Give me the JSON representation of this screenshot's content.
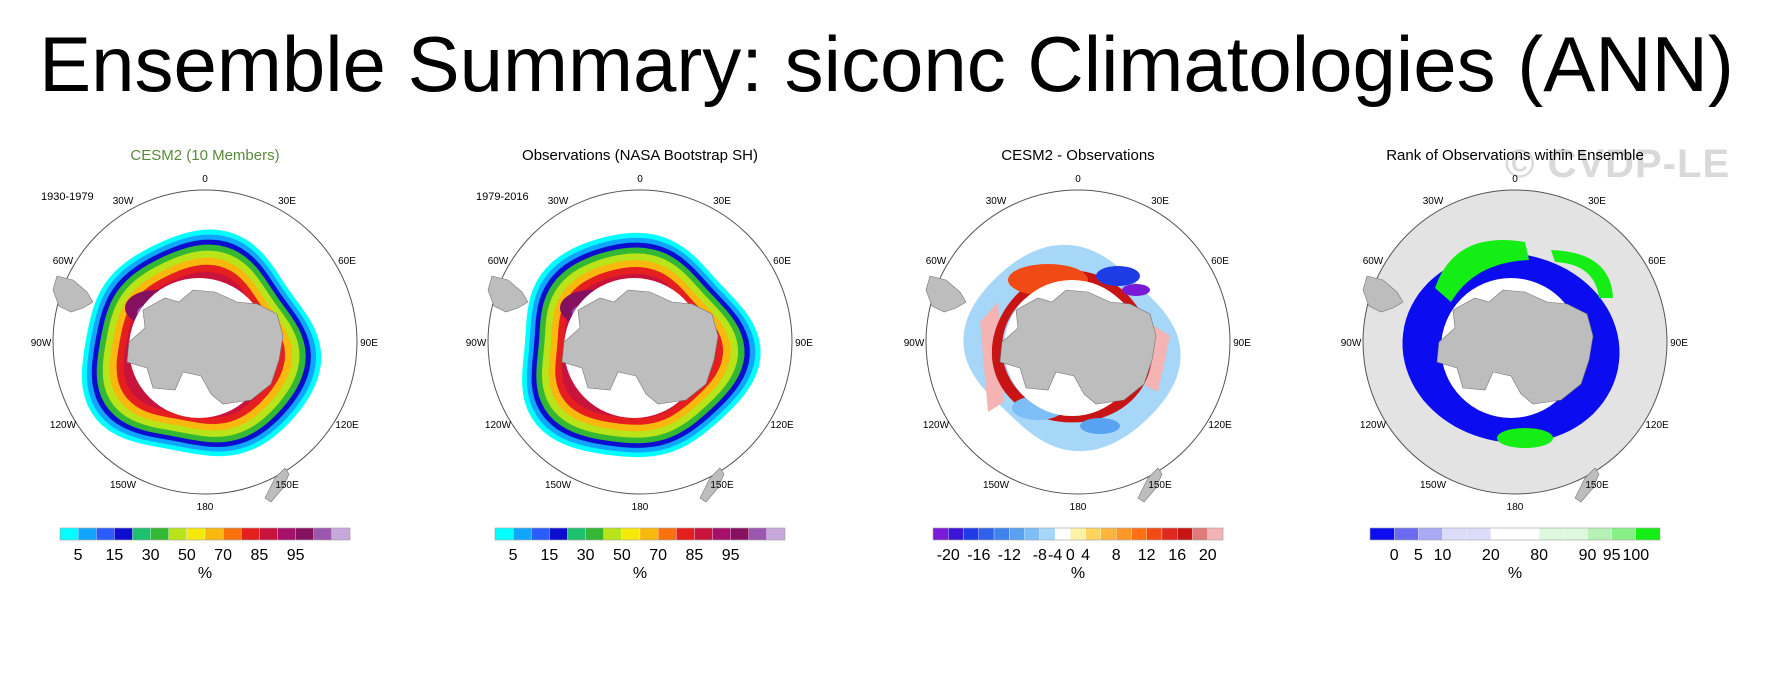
{
  "title": "Ensemble Summary: siconc Climatologies (ANN)",
  "watermark": "© CVDP-LE",
  "colors": {
    "land": "#bdbdbd",
    "rank_background": "#e3e3e3",
    "title_green": "#5a8a3c"
  },
  "panels": [
    {
      "id": "cesm2",
      "title": "CESM2 (10 Members)",
      "title_color": "#5a8a3c",
      "period": "1930-1979",
      "field": "ensemble-mean sea ice concentration",
      "colorbar": {
        "colors": [
          "#00ffff",
          "#10a6ff",
          "#2a5cff",
          "#0d0dcf",
          "#1dc06c",
          "#32b832",
          "#b9e41a",
          "#f6e90a",
          "#f9b80d",
          "#f9720d",
          "#e51f1f",
          "#c8143c",
          "#a6106a",
          "#85105f",
          "#9b56b0",
          "#c6a8da"
        ],
        "labels": [
          "5",
          "15",
          "30",
          "50",
          "70",
          "85",
          "95"
        ],
        "unit": "%"
      }
    },
    {
      "id": "obs",
      "title": "Observations (NASA Bootstrap SH)",
      "title_color": "#000000",
      "period": "1979-2016",
      "field": "observed sea ice concentration",
      "colorbar": {
        "colors": [
          "#00ffff",
          "#10a6ff",
          "#2a5cff",
          "#0d0dcf",
          "#1dc06c",
          "#32b832",
          "#b9e41a",
          "#f6e90a",
          "#f9b80d",
          "#f9720d",
          "#e51f1f",
          "#c8143c",
          "#a6106a",
          "#85105f",
          "#9b56b0",
          "#c6a8da"
        ],
        "labels": [
          "5",
          "15",
          "30",
          "50",
          "70",
          "85",
          "95"
        ],
        "unit": "%"
      }
    },
    {
      "id": "diff",
      "title": "CESM2 - Observations",
      "title_color": "#000000",
      "period": "",
      "field": "difference",
      "colorbar": {
        "colors": [
          "#7a1ad6",
          "#3c14d6",
          "#1e3ce6",
          "#2f62e8",
          "#3f82ec",
          "#58a2f2",
          "#7cbef5",
          "#a6d6f8",
          "#ffffff",
          "#fff2a8",
          "#ffd35c",
          "#ffb43c",
          "#ff9628",
          "#ff7014",
          "#f24a14",
          "#e0281e",
          "#c81414",
          "#e07a7a",
          "#f4b4b4"
        ],
        "labels": [
          "-20",
          "-16",
          "-12",
          "-8",
          "-4",
          "0",
          "4",
          "8",
          "12",
          "16",
          "20"
        ],
        "unit": "%"
      }
    },
    {
      "id": "rank",
      "title": "Rank of Observations within Ensemble",
      "title_color": "#000000",
      "period": "",
      "field": "rank",
      "colorbar": {
        "colors": [
          "#0c0cf0",
          "#6b6bf2",
          "#a9a9f6",
          "#dcdcfa",
          "#dcdcfa",
          "#ffffff",
          "#ffffff",
          "#ddf8dd",
          "#ddf8dd",
          "#b6f2b6",
          "#86f086",
          "#14ee14"
        ],
        "labels": [
          "0",
          "5",
          "10",
          "20",
          "80",
          "90",
          "95",
          "100"
        ],
        "unit": "%"
      }
    }
  ],
  "chart_data": {
    "type": "heatmap",
    "title": "Ensemble Summary: siconc Climatologies (ANN)",
    "projection": "south polar stereographic",
    "longitude_labels": [
      "0",
      "30E",
      "60E",
      "90E",
      "120E",
      "150E",
      "180",
      "150W",
      "120W",
      "90W",
      "60W",
      "30W"
    ],
    "panels": [
      {
        "title": "CESM2 (10 Members)",
        "period": "1930-1979",
        "colorbar_labels": [
          5,
          15,
          30,
          50,
          70,
          85,
          95
        ],
        "unit": "%"
      },
      {
        "title": "Observations (NASA Bootstrap SH)",
        "period": "1979-2016",
        "colorbar_labels": [
          5,
          15,
          30,
          50,
          70,
          85,
          95
        ],
        "unit": "%"
      },
      {
        "title": "CESM2 - Observations",
        "colorbar_labels": [
          -20,
          -16,
          -12,
          -8,
          -4,
          0,
          4,
          8,
          12,
          16,
          20
        ],
        "unit": "%"
      },
      {
        "title": "Rank of Observations within Ensemble",
        "colorbar_labels": [
          0,
          5,
          10,
          20,
          80,
          90,
          95,
          100
        ],
        "unit": "%"
      }
    ]
  }
}
